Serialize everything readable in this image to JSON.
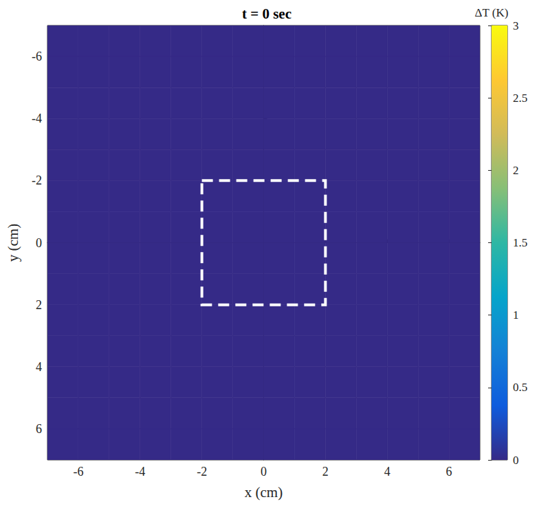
{
  "chart_data": {
    "type": "heatmap",
    "title": "t = 0 sec",
    "x_label": "x (cm)",
    "y_label": "y (cm)",
    "xlim": [
      -7,
      7
    ],
    "ylim": [
      -7,
      7
    ],
    "xticks": [
      -6,
      -4,
      -2,
      0,
      2,
      4,
      6
    ],
    "yticks": [
      -6,
      -4,
      -2,
      0,
      2,
      4,
      6
    ],
    "y_inverted": true,
    "cells": [
      [
        0,
        0,
        0,
        0,
        0,
        0,
        0,
        0,
        0,
        0,
        0,
        0,
        0,
        0
      ],
      [
        0,
        0,
        0,
        0,
        0,
        0,
        0,
        0,
        0,
        0,
        0,
        0,
        0,
        0
      ],
      [
        0,
        0,
        0,
        0,
        0,
        0,
        0,
        0,
        0,
        0,
        0,
        0,
        0,
        0
      ],
      [
        0,
        0,
        0,
        0,
        0,
        0,
        0,
        0,
        0,
        0,
        0,
        0,
        0,
        0
      ],
      [
        0,
        0,
        0,
        0,
        0,
        0,
        0,
        0,
        0,
        0,
        0,
        0,
        0,
        0
      ],
      [
        0,
        0,
        0,
        0,
        0,
        0,
        0,
        0,
        0,
        0,
        0,
        0,
        0,
        0
      ],
      [
        0,
        0,
        0,
        0,
        0,
        0,
        0,
        0,
        0,
        0,
        0,
        0,
        0,
        0
      ],
      [
        0,
        0,
        0,
        0,
        0,
        0,
        0,
        0,
        0,
        0,
        0,
        0,
        0,
        0
      ],
      [
        0,
        0,
        0,
        0,
        0,
        0,
        0,
        0,
        0,
        0,
        0,
        0,
        0,
        0
      ],
      [
        0,
        0,
        0,
        0,
        0,
        0,
        0,
        0,
        0,
        0,
        0,
        0,
        0,
        0
      ],
      [
        0,
        0,
        0,
        0,
        0,
        0,
        0,
        0,
        0,
        0,
        0,
        0,
        0,
        0
      ],
      [
        0,
        0,
        0,
        0,
        0,
        0,
        0,
        0,
        0,
        0,
        0,
        0,
        0,
        0
      ],
      [
        0,
        0,
        0,
        0,
        0,
        0,
        0,
        0,
        0,
        0,
        0,
        0,
        0,
        0
      ],
      [
        0,
        0,
        0,
        0,
        0,
        0,
        0,
        0,
        0,
        0,
        0,
        0,
        0,
        0
      ]
    ],
    "box": {
      "x": [
        -2,
        2
      ],
      "y": [
        -2,
        2
      ],
      "line_style": "dashed",
      "color": "#ffffff"
    },
    "colorbar": {
      "label": "ΔT (K)",
      "lim": [
        0,
        3
      ],
      "ticks": [
        0,
        0.5,
        1,
        1.5,
        2,
        2.5,
        3
      ]
    }
  }
}
